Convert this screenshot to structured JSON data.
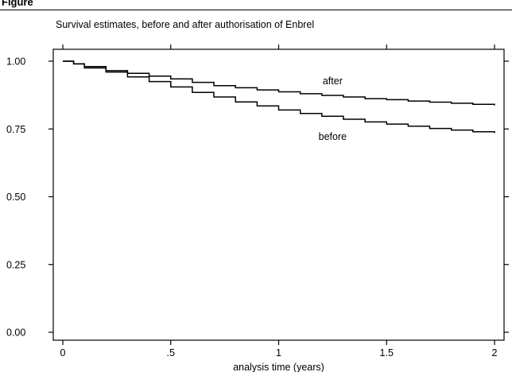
{
  "header": {
    "figure_label": "Figure"
  },
  "chart_data": {
    "type": "line",
    "title": "Survival estimates, before and after authorisation of Enbrel",
    "xlabel": "analysis time (years)",
    "ylabel": "",
    "xlim": [
      0,
      2
    ],
    "ylim": [
      0,
      1
    ],
    "x_ticks": [
      0,
      0.5,
      1,
      1.5,
      2
    ],
    "x_tick_labels": [
      "0",
      ".5",
      "1",
      "1.5",
      "2"
    ],
    "y_ticks": [
      0,
      0.25,
      0.5,
      0.75,
      1
    ],
    "y_tick_labels": [
      "0.00",
      "0.25",
      "0.50",
      "0.75",
      "1.00"
    ],
    "grid": false,
    "series": [
      {
        "name": "after",
        "x": [
          0,
          0.05,
          0.1,
          0.2,
          0.3,
          0.4,
          0.5,
          0.6,
          0.7,
          0.8,
          0.9,
          1.0,
          1.1,
          1.2,
          1.3,
          1.4,
          1.5,
          1.6,
          1.7,
          1.8,
          1.9,
          2.0
        ],
        "y": [
          1.0,
          0.99,
          0.98,
          0.965,
          0.955,
          0.945,
          0.935,
          0.922,
          0.91,
          0.902,
          0.894,
          0.887,
          0.88,
          0.874,
          0.868,
          0.862,
          0.858,
          0.853,
          0.849,
          0.845,
          0.841,
          0.837
        ]
      },
      {
        "name": "before",
        "x": [
          0,
          0.05,
          0.1,
          0.2,
          0.3,
          0.4,
          0.5,
          0.6,
          0.7,
          0.8,
          0.9,
          1.0,
          1.1,
          1.2,
          1.3,
          1.4,
          1.5,
          1.6,
          1.7,
          1.8,
          1.9,
          2.0
        ],
        "y": [
          1.0,
          0.99,
          0.975,
          0.96,
          0.942,
          0.925,
          0.905,
          0.885,
          0.868,
          0.85,
          0.835,
          0.82,
          0.807,
          0.797,
          0.786,
          0.776,
          0.768,
          0.76,
          0.752,
          0.746,
          0.74,
          0.735
        ]
      }
    ],
    "annotations": [
      {
        "text": "after",
        "x": 1.25,
        "y": 0.915
      },
      {
        "text": "before",
        "x": 1.25,
        "y": 0.71
      }
    ]
  }
}
